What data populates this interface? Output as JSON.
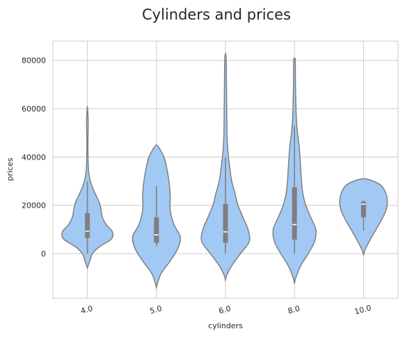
{
  "chart_data": {
    "type": "violin",
    "title": "Cylinders and prices",
    "xlabel": "cylinders",
    "ylabel": "prices",
    "categories": [
      "4.0",
      "5.0",
      "6.0",
      "8.0",
      "10.0"
    ],
    "ylim": [
      -18500,
      88000
    ],
    "yticks": [
      0,
      20000,
      40000,
      60000,
      80000
    ],
    "ytick_labels": [
      "0",
      "20000",
      "40000",
      "60000",
      "80000"
    ],
    "grid": true,
    "colors": {
      "fill": "#a1c9f4",
      "outline": "#7f7f7f",
      "box": "#7f7f7f",
      "median": "#ffffff",
      "grid": "#cccccc"
    },
    "violins": [
      {
        "category": "4.0",
        "box": {
          "whisker_low": 0,
          "q1": 6500,
          "median": 9300,
          "q3": 16800,
          "whisker_high": 30000
        },
        "profile": [
          [
            -6000,
            0.0
          ],
          [
            -5000,
            0.03
          ],
          [
            -3000,
            0.1
          ],
          [
            0,
            0.2
          ],
          [
            3000,
            0.5
          ],
          [
            6000,
            0.95
          ],
          [
            9000,
            1.0
          ],
          [
            12000,
            0.75
          ],
          [
            15000,
            0.6
          ],
          [
            18000,
            0.55
          ],
          [
            21000,
            0.48
          ],
          [
            24000,
            0.35
          ],
          [
            27000,
            0.22
          ],
          [
            30000,
            0.12
          ],
          [
            34000,
            0.05
          ],
          [
            38000,
            0.03
          ],
          [
            45000,
            0.02
          ],
          [
            52000,
            0.03
          ],
          [
            55000,
            0.03
          ],
          [
            58000,
            0.02
          ],
          [
            61000,
            0.0
          ]
        ]
      },
      {
        "category": "5.0",
        "box": {
          "whisker_low": 3000,
          "q1": 4500,
          "median": 7800,
          "q3": 15000,
          "whisker_high": 28000
        },
        "profile": [
          [
            -14000,
            0.0
          ],
          [
            -12000,
            0.05
          ],
          [
            -8000,
            0.2
          ],
          [
            -3000,
            0.55
          ],
          [
            2000,
            0.85
          ],
          [
            7000,
            0.95
          ],
          [
            12000,
            0.7
          ],
          [
            18000,
            0.55
          ],
          [
            24000,
            0.55
          ],
          [
            30000,
            0.5
          ],
          [
            36000,
            0.4
          ],
          [
            40000,
            0.3
          ],
          [
            43000,
            0.15
          ],
          [
            45000,
            0.0
          ]
        ]
      },
      {
        "category": "6.0",
        "box": {
          "whisker_low": 0,
          "q1": 4500,
          "median": 9000,
          "q3": 20500,
          "whisker_high": 40000
        },
        "profile": [
          [
            -11000,
            0.0
          ],
          [
            -9000,
            0.05
          ],
          [
            -5000,
            0.25
          ],
          [
            0,
            0.6
          ],
          [
            5000,
            0.95
          ],
          [
            10000,
            0.9
          ],
          [
            15000,
            0.7
          ],
          [
            20000,
            0.5
          ],
          [
            25000,
            0.38
          ],
          [
            30000,
            0.25
          ],
          [
            35000,
            0.18
          ],
          [
            40000,
            0.12
          ],
          [
            45000,
            0.08
          ],
          [
            50000,
            0.06
          ],
          [
            60000,
            0.05
          ],
          [
            70000,
            0.04
          ],
          [
            80000,
            0.03
          ],
          [
            83000,
            0.0
          ]
        ]
      },
      {
        "category": "8.0",
        "box": {
          "whisker_low": 0,
          "q1": 5800,
          "median": 12000,
          "q3": 27500,
          "whisker_high": 53000
        },
        "profile": [
          [
            -12500,
            0.0
          ],
          [
            -10000,
            0.05
          ],
          [
            -5000,
            0.25
          ],
          [
            0,
            0.55
          ],
          [
            5000,
            0.8
          ],
          [
            10000,
            0.85
          ],
          [
            15000,
            0.65
          ],
          [
            20000,
            0.45
          ],
          [
            25000,
            0.33
          ],
          [
            30000,
            0.28
          ],
          [
            35000,
            0.25
          ],
          [
            40000,
            0.22
          ],
          [
            45000,
            0.18
          ],
          [
            50000,
            0.12
          ],
          [
            55000,
            0.08
          ],
          [
            60000,
            0.06
          ],
          [
            70000,
            0.04
          ],
          [
            80000,
            0.03
          ],
          [
            80500,
            0.0
          ]
        ]
      },
      {
        "category": "10.0",
        "box": {
          "whisker_low": 9500,
          "q1": 15000,
          "median": 20500,
          "q3": 21500,
          "whisker_high": 22000
        },
        "profile": [
          [
            -500,
            0.0
          ],
          [
            2000,
            0.08
          ],
          [
            6000,
            0.28
          ],
          [
            10000,
            0.5
          ],
          [
            14000,
            0.72
          ],
          [
            18000,
            0.9
          ],
          [
            22000,
            0.95
          ],
          [
            26000,
            0.85
          ],
          [
            29000,
            0.6
          ],
          [
            31000,
            0.0
          ]
        ]
      }
    ]
  }
}
